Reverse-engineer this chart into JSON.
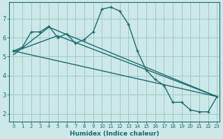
{
  "xlabel": "Humidex (Indice chaleur)",
  "bg_color": "#cce8e8",
  "grid_color": "#a0c8c8",
  "line_color": "#1a6b6b",
  "xlim": [
    -0.5,
    23.3
  ],
  "ylim": [
    1.6,
    7.85
  ],
  "yticks": [
    2,
    3,
    4,
    5,
    6,
    7
  ],
  "xticks": [
    0,
    1,
    2,
    3,
    4,
    5,
    6,
    7,
    8,
    9,
    10,
    11,
    12,
    13,
    14,
    15,
    16,
    17,
    18,
    19,
    20,
    21,
    22,
    23
  ],
  "line1_x": [
    0,
    1,
    2,
    3,
    4,
    5,
    6,
    7,
    8,
    9,
    10,
    11,
    12,
    13,
    14,
    15,
    16,
    17,
    18,
    19,
    20,
    21,
    22,
    23
  ],
  "line1_y": [
    5.3,
    5.5,
    6.3,
    6.3,
    6.6,
    6.0,
    6.2,
    5.7,
    5.9,
    6.3,
    7.5,
    7.6,
    7.4,
    6.7,
    5.3,
    4.3,
    3.8,
    3.5,
    2.6,
    2.6,
    2.2,
    2.1,
    2.1,
    2.9
  ],
  "line2_x": [
    0,
    23
  ],
  "line2_y": [
    5.3,
    2.9
  ],
  "line3_x": [
    0,
    4,
    23
  ],
  "line3_y": [
    5.1,
    6.55,
    2.9
  ],
  "line4_x": [
    0,
    5,
    23
  ],
  "line4_y": [
    5.25,
    6.1,
    2.9
  ]
}
